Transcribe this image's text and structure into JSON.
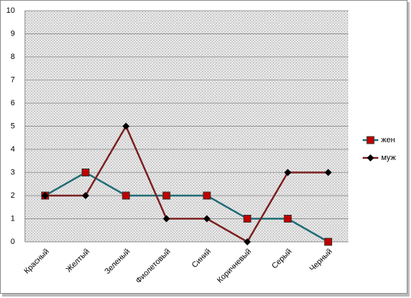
{
  "chart_data": {
    "type": "line",
    "categories": [
      "Красный",
      "Желтый",
      "Зеленый",
      "Фиолетовый",
      "Синий",
      "Коричневый",
      "Серый",
      "Черный"
    ],
    "series": [
      {
        "name": "жен",
        "color": "#1f6b75",
        "marker": "square",
        "marker_color": "#c00000",
        "values": [
          2,
          3,
          2,
          2,
          2,
          1,
          1,
          0
        ]
      },
      {
        "name": "муж",
        "color": "#7b1f1f",
        "marker": "diamond",
        "marker_color": "#000000",
        "values": [
          2,
          2,
          5,
          1,
          1,
          0,
          3,
          3
        ]
      }
    ],
    "ylim": [
      0,
      10
    ],
    "yticks": [
      0,
      1,
      2,
      3,
      4,
      5,
      6,
      7,
      8,
      9,
      10
    ],
    "grid": true,
    "legend": "right"
  }
}
